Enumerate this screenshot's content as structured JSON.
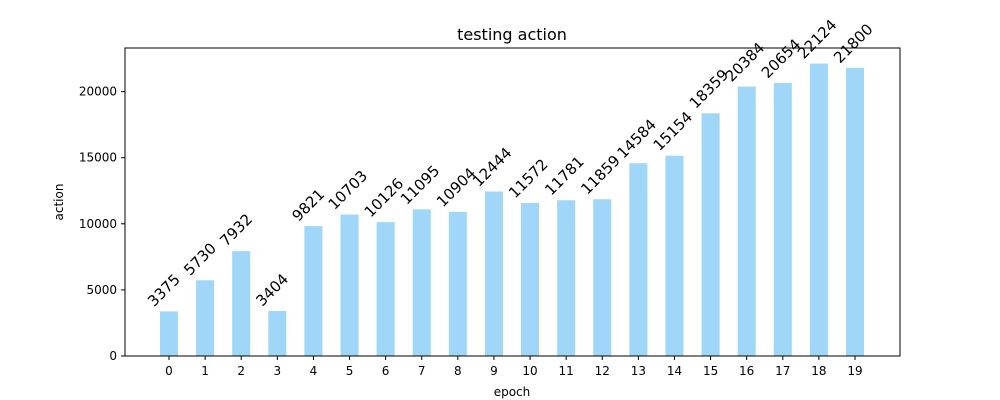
{
  "chart_data": {
    "type": "bar",
    "title": "testing action",
    "xlabel": "epoch",
    "ylabel": "action",
    "categories": [
      "0",
      "1",
      "2",
      "3",
      "4",
      "5",
      "6",
      "7",
      "8",
      "9",
      "10",
      "11",
      "12",
      "13",
      "14",
      "15",
      "16",
      "17",
      "18",
      "19"
    ],
    "values": [
      3375,
      5730,
      7932,
      3404,
      9821,
      10703,
      10126,
      11095,
      10904,
      12444,
      11572,
      11781,
      11859,
      14584,
      15154,
      18359,
      20384,
      20654,
      22124,
      21800
    ],
    "ylim": [
      0,
      23300
    ],
    "yticks": [
      0,
      5000,
      10000,
      15000,
      20000
    ],
    "bar_color": "#a0d6f7",
    "grid": false,
    "legend": false
  }
}
